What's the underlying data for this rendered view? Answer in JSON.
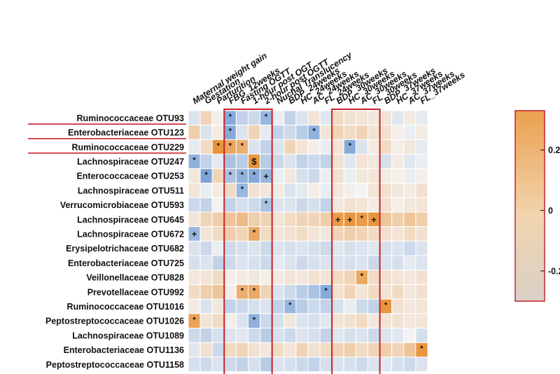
{
  "chart_data": {
    "type": "heatmap",
    "title": "",
    "rows": [
      "Ruminococcaceae OTU93",
      "Enterobacteriaceae OTU123",
      "Ruminococcaceae OTU229",
      "Lachnospiraceae OTU247",
      "Enterococcaceae OTU253",
      "Lachnospiraceae OTU511",
      "Verrucomicrobiaceae OTU593",
      "Lachnospiraceae OTU645",
      "Lachnospiraceae OTU672",
      "Erysipelotrichaceae OTU682",
      "Enterobacteriaceae OTU725",
      "Veillonellaceae OTU828",
      "Prevotellaceae OTU992",
      "Ruminococcaceae OTU1016",
      "Peptostreptococcaceae OTU1026",
      "Lachnospiraceae OTU1089",
      "Enterobacteriaceae OTU1136",
      "Peptostreptococcaceae OTU1158"
    ],
    "columns": [
      "Maternal weight gain",
      "Gestation",
      "Parturition",
      "FBG_12weeks",
      "Fasting OGTT",
      "1-hour post OGT",
      "2-hour post OGTT",
      "Nuchal Translucency",
      "BDP_24weeks",
      "HC_24weeks",
      "AC_24weeks",
      "FL_24weeks",
      "BDP_30weeks",
      "HC_30weeks",
      "AC_30weeks",
      "FL_30weeks",
      "BDP_37weeks",
      "HC_37weeks",
      "AC_37weeks",
      "FL_37weeks"
    ],
    "underlined_rows": [
      0,
      1,
      2
    ],
    "highlighted_column_groups": [
      {
        "start": 3,
        "end": 6
      },
      {
        "start": 12,
        "end": 15
      }
    ],
    "values": [
      [
        -0.05,
        0.1,
        0.02,
        -0.22,
        -0.1,
        -0.08,
        -0.18,
        -0.02,
        -0.1,
        -0.05,
        0.05,
        -0.04,
        0.08,
        0.06,
        0.05,
        0.04,
        0.05,
        -0.04,
        0.03,
        -0.03
      ],
      [
        0.12,
        -0.05,
        0.03,
        -0.22,
        -0.05,
        0.1,
        -0.03,
        -0.1,
        -0.08,
        -0.12,
        -0.2,
        0.05,
        0.1,
        0.08,
        0.1,
        0.06,
        0.06,
        0.02,
        -0.02,
        0.03
      ],
      [
        -0.03,
        0.08,
        0.32,
        0.25,
        0.22,
        -0.05,
        -0.1,
        -0.05,
        0.1,
        0.05,
        0.02,
        -0.02,
        0.05,
        -0.22,
        -0.05,
        0.03,
        0.08,
        0.02,
        0.04,
        -0.03
      ],
      [
        -0.2,
        -0.1,
        -0.03,
        -0.15,
        -0.12,
        0.3,
        -0.12,
        -0.08,
        -0.05,
        -0.1,
        -0.08,
        -0.1,
        0.06,
        -0.04,
        0.05,
        0.04,
        -0.06,
        0.03,
        -0.04,
        -0.02
      ],
      [
        0.04,
        -0.24,
        0.1,
        -0.15,
        -0.2,
        -0.22,
        -0.18,
        -0.02,
        0.04,
        -0.06,
        -0.08,
        -0.02,
        0.06,
        -0.02,
        0.04,
        0.05,
        0.03,
        0.02,
        -0.02,
        0.02
      ],
      [
        0.05,
        -0.02,
        0.03,
        0.08,
        -0.18,
        0.06,
        0.04,
        0.03,
        -0.05,
        -0.03,
        0.02,
        -0.02,
        0.04,
        0.02,
        0.0,
        0.05,
        0.06,
        0.04,
        0.03,
        0.06
      ],
      [
        -0.08,
        -0.1,
        0.01,
        -0.1,
        -0.06,
        -0.08,
        -0.15,
        -0.05,
        -0.05,
        -0.08,
        -0.06,
        -0.1,
        0.04,
        0.06,
        0.05,
        0.03,
        0.06,
        0.02,
        0.04,
        0.05
      ],
      [
        0.05,
        0.1,
        0.12,
        0.15,
        0.18,
        0.12,
        0.1,
        0.05,
        0.08,
        0.1,
        0.1,
        0.12,
        0.28,
        0.3,
        0.28,
        0.3,
        0.15,
        0.12,
        0.15,
        0.12
      ],
      [
        -0.18,
        0.05,
        0.08,
        0.12,
        0.1,
        0.24,
        0.08,
        0.05,
        0.06,
        0.08,
        0.05,
        0.04,
        0.1,
        0.12,
        0.1,
        0.08,
        0.06,
        0.05,
        0.08,
        0.06
      ],
      [
        -0.05,
        -0.08,
        -0.02,
        -0.08,
        -0.06,
        -0.05,
        -0.08,
        -0.05,
        -0.06,
        -0.05,
        -0.06,
        -0.08,
        -0.04,
        -0.06,
        -0.05,
        -0.04,
        -0.06,
        -0.05,
        -0.08,
        -0.05
      ],
      [
        -0.06,
        -0.05,
        -0.1,
        -0.08,
        -0.05,
        -0.06,
        -0.08,
        -0.03,
        -0.05,
        -0.08,
        -0.06,
        -0.05,
        -0.05,
        -0.06,
        -0.05,
        -0.08,
        -0.05,
        -0.06,
        -0.03,
        -0.05
      ],
      [
        0.04,
        0.05,
        0.08,
        0.02,
        0.03,
        0.04,
        0.02,
        0.03,
        0.05,
        0.04,
        0.06,
        0.05,
        0.08,
        0.1,
        0.24,
        0.08,
        0.06,
        0.05,
        0.04,
        0.06
      ],
      [
        0.08,
        0.12,
        0.15,
        0.02,
        0.22,
        0.24,
        0.1,
        -0.05,
        -0.08,
        -0.12,
        -0.15,
        -0.22,
        0.06,
        0.1,
        0.05,
        0.08,
        0.05,
        0.08,
        0.04,
        0.06
      ],
      [
        0.03,
        -0.05,
        0.04,
        -0.1,
        -0.08,
        -0.06,
        -0.05,
        -0.1,
        -0.18,
        -0.12,
        -0.08,
        -0.1,
        -0.06,
        -0.02,
        -0.08,
        -0.1,
        0.3,
        0.06,
        0.04,
        0.05
      ],
      [
        0.26,
        0.05,
        0.08,
        0.02,
        -0.05,
        -0.2,
        -0.08,
        -0.06,
        0.04,
        -0.05,
        -0.06,
        -0.04,
        0.05,
        0.06,
        0.08,
        0.04,
        0.05,
        0.06,
        0.04,
        0.05
      ],
      [
        -0.08,
        -0.1,
        -0.06,
        -0.05,
        -0.04,
        -0.08,
        -0.12,
        -0.06,
        -0.08,
        -0.05,
        -0.06,
        -0.1,
        -0.04,
        -0.06,
        -0.05,
        -0.08,
        -0.05,
        -0.04,
        0.0,
        -0.06
      ],
      [
        -0.04,
        0.06,
        -0.08,
        0.08,
        0.1,
        0.06,
        0.04,
        0.08,
        0.05,
        0.1,
        0.06,
        0.08,
        0.1,
        0.12,
        0.08,
        0.1,
        0.12,
        0.1,
        0.15,
        0.3
      ],
      [
        -0.06,
        -0.08,
        -0.05,
        -0.08,
        -0.1,
        -0.06,
        -0.12,
        -0.05,
        -0.06,
        -0.08,
        -0.1,
        -0.06,
        -0.05,
        -0.06,
        -0.08,
        -0.05,
        -0.04,
        -0.06,
        -0.08,
        -0.05
      ]
    ],
    "annotations": [
      {
        "row": 0,
        "col": 3,
        "symbol": "*"
      },
      {
        "row": 0,
        "col": 6,
        "symbol": "*"
      },
      {
        "row": 1,
        "col": 3,
        "symbol": "*"
      },
      {
        "row": 1,
        "col": 10,
        "symbol": "*"
      },
      {
        "row": 2,
        "col": 2,
        "symbol": "*"
      },
      {
        "row": 2,
        "col": 3,
        "symbol": "*"
      },
      {
        "row": 2,
        "col": 4,
        "symbol": "*"
      },
      {
        "row": 2,
        "col": 13,
        "symbol": "*"
      },
      {
        "row": 3,
        "col": 0,
        "symbol": "*"
      },
      {
        "row": 3,
        "col": 5,
        "symbol": "$"
      },
      {
        "row": 4,
        "col": 1,
        "symbol": "*"
      },
      {
        "row": 4,
        "col": 3,
        "symbol": "*"
      },
      {
        "row": 4,
        "col": 4,
        "symbol": "*"
      },
      {
        "row": 4,
        "col": 5,
        "symbol": "*"
      },
      {
        "row": 4,
        "col": 6,
        "symbol": "+"
      },
      {
        "row": 5,
        "col": 4,
        "symbol": "*"
      },
      {
        "row": 6,
        "col": 6,
        "symbol": "*"
      },
      {
        "row": 7,
        "col": 12,
        "symbol": "+"
      },
      {
        "row": 7,
        "col": 13,
        "symbol": "+"
      },
      {
        "row": 7,
        "col": 14,
        "symbol": "*"
      },
      {
        "row": 7,
        "col": 15,
        "symbol": "+"
      },
      {
        "row": 8,
        "col": 0,
        "symbol": "+"
      },
      {
        "row": 8,
        "col": 5,
        "symbol": "*"
      },
      {
        "row": 11,
        "col": 14,
        "symbol": "*"
      },
      {
        "row": 12,
        "col": 4,
        "symbol": "*"
      },
      {
        "row": 12,
        "col": 5,
        "symbol": "*"
      },
      {
        "row": 12,
        "col": 11,
        "symbol": "*"
      },
      {
        "row": 13,
        "col": 8,
        "symbol": "*"
      },
      {
        "row": 13,
        "col": 16,
        "symbol": "*"
      },
      {
        "row": 14,
        "col": 0,
        "symbol": "*"
      },
      {
        "row": 14,
        "col": 5,
        "symbol": "*"
      },
      {
        "row": 16,
        "col": 19,
        "symbol": "*"
      }
    ],
    "colorbar": {
      "range": [
        -0.3,
        0.33
      ],
      "ticks": [
        0.2,
        0,
        -0.2
      ],
      "tick_labels": [
        "0.2",
        "0",
        "-0.2"
      ]
    },
    "colors": {
      "positive": "#e8953e",
      "neutral": "#f4f4f4",
      "negative": "#5d8fd0",
      "colorbar_top": "#eaa04f",
      "colorbar_bottom": "#d9d0c6",
      "highlight": "#c8202a",
      "underline": "#c8202a",
      "cell_stroke": "#ffffff"
    }
  }
}
